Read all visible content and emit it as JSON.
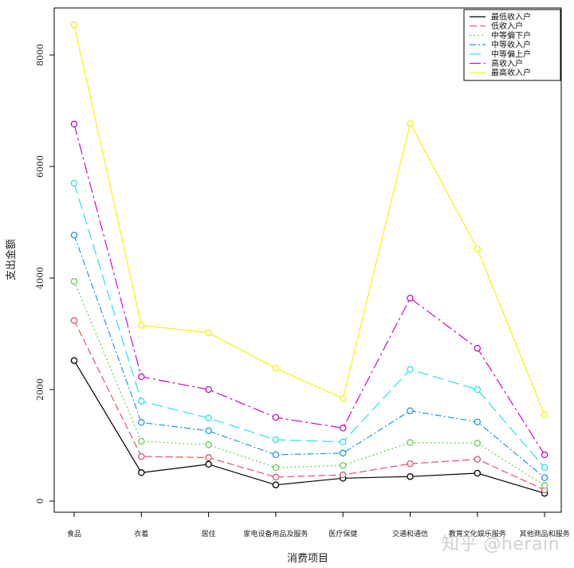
{
  "chart_data": {
    "type": "line",
    "title": "",
    "xlabel": "消费项目",
    "ylabel": "支出金额",
    "ylim": [
      0,
      8800
    ],
    "yticks": [
      0,
      2000,
      4000,
      6000,
      8000
    ],
    "categories": [
      "食品",
      "衣着",
      "居住",
      "家电设备用品及服务",
      "医疗保健",
      "交通和通信",
      "教育文化娱乐服务",
      "其他商品和服务"
    ],
    "legend_position": "top-right",
    "series": [
      {
        "name": "最低收入户",
        "color": "#000000",
        "dash": "",
        "values": [
          2520,
          510,
          660,
          290,
          410,
          440,
          500,
          140
        ]
      },
      {
        "name": "低收入户",
        "color": "#df536b",
        "dash": "9,4",
        "values": [
          3240,
          800,
          780,
          430,
          470,
          670,
          750,
          200
        ]
      },
      {
        "name": "中等偏下户",
        "color": "#61d04f",
        "dash": "2,3",
        "values": [
          3940,
          1070,
          1010,
          600,
          640,
          1050,
          1040,
          280
        ]
      },
      {
        "name": "中等收入户",
        "color": "#2297e6",
        "dash": "8,3,2,3",
        "values": [
          4770,
          1410,
          1260,
          830,
          860,
          1620,
          1420,
          420
        ]
      },
      {
        "name": "中等偏上户",
        "color": "#28e2e5",
        "dash": "14,6",
        "values": [
          5700,
          1790,
          1490,
          1100,
          1060,
          2360,
          2000,
          600
        ]
      },
      {
        "name": "高收入户",
        "color": "#cd0bbc",
        "dash": "14,4,3,4",
        "values": [
          6760,
          2230,
          2000,
          1500,
          1310,
          3640,
          2740,
          830
        ]
      },
      {
        "name": "最高收入户",
        "color": "#f5f50a",
        "dash": "",
        "values": [
          8540,
          3150,
          3020,
          2380,
          1840,
          6770,
          4520,
          1550
        ]
      }
    ]
  },
  "watermark": "知乎 @herain"
}
